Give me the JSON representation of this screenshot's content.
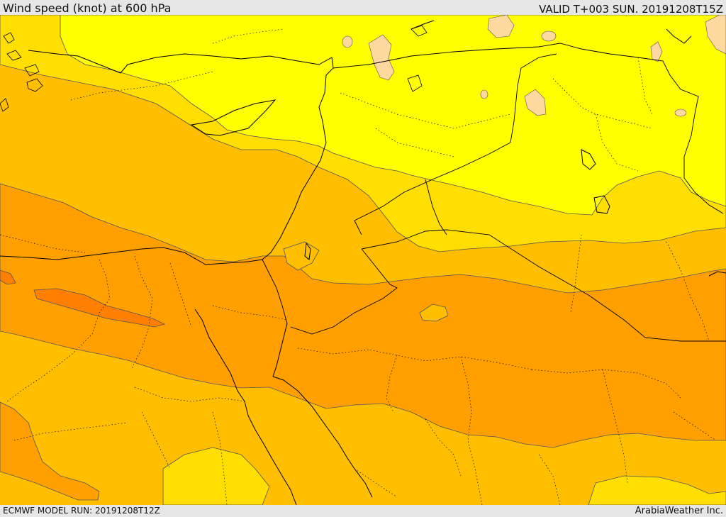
{
  "header": {
    "title": "Wind speed (knot) at 600 hPa",
    "valid": "VALID T+003 SUN. 20191208T15Z"
  },
  "footer": {
    "model_run": "ECMWF MODEL RUN: 20191208T12Z",
    "credit": "ArabiaWeather Inc."
  },
  "palette": {
    "band_lowest": "#fdd9a0",
    "band_1": "#ffff00",
    "band_2": "#ffde00",
    "band_3": "#ffbf00",
    "band_4": "#ffa000",
    "band_5": "#ff8000",
    "coastline": "#000000",
    "contour": "#555555"
  }
}
